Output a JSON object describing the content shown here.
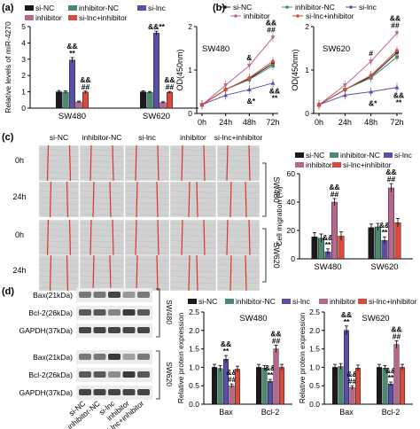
{
  "panel_labels": {
    "a": "(a)",
    "b": "(b)",
    "c": "(c)",
    "d": "(d)"
  },
  "groups": [
    "si-NC",
    "inhibitor-NC",
    "si-lnc",
    "inhibitor",
    "si-lnc+inhibitor"
  ],
  "colors": {
    "si_nc": "#1a1a1a",
    "inhibitor_nc": "#4a8a6e",
    "si_lnc": "#5a4fa8",
    "inhibitor": "#b8678c",
    "si_lnc_inhibitor": "#d84a3c",
    "wound_line": "#e0332b"
  },
  "chart_data": [
    {
      "panel": "a",
      "type": "bar",
      "ylabel": "Relative levels of miR-4270",
      "ylim": [
        0,
        5
      ],
      "yticks": [
        0,
        1,
        2,
        3,
        4,
        5
      ],
      "categories": [
        "SW480",
        "SW620"
      ],
      "series": [
        {
          "name": "si-NC",
          "values": [
            1.0,
            1.0
          ],
          "err": [
            0.08,
            0.06
          ]
        },
        {
          "name": "inhibitor-NC",
          "values": [
            0.98,
            0.97
          ],
          "err": [
            0.07,
            0.05
          ]
        },
        {
          "name": "si-lnc",
          "values": [
            2.95,
            4.6
          ],
          "err": [
            0.15,
            0.12
          ],
          "annotation": [
            "&&\n**",
            "&&**"
          ]
        },
        {
          "name": "inhibitor",
          "values": [
            0.38,
            0.34
          ],
          "err": [
            0.05,
            0.05
          ],
          "annotation": [
            "",
            ""
          ]
        },
        {
          "name": "si-lnc+inhibitor",
          "values": [
            0.98,
            0.97
          ],
          "err": [
            0.06,
            0.05
          ],
          "annotation": [
            "&&\n##",
            "&&\n##"
          ]
        }
      ]
    },
    {
      "panel": "b-left",
      "type": "line",
      "title": "SW480",
      "ylabel": "OD(450nm)",
      "ylim": [
        0,
        2
      ],
      "yticks": [
        0,
        1,
        2
      ],
      "x": [
        "0h",
        "24h",
        "48h",
        "72h"
      ],
      "series": [
        {
          "name": "si-NC",
          "values": [
            0.2,
            0.55,
            0.8,
            1.15
          ]
        },
        {
          "name": "inhibitor-NC",
          "values": [
            0.2,
            0.55,
            0.78,
            1.1
          ]
        },
        {
          "name": "si-lnc",
          "values": [
            0.2,
            0.42,
            0.55,
            0.7
          ]
        },
        {
          "name": "inhibitor",
          "values": [
            0.2,
            0.65,
            1.1,
            1.75
          ]
        },
        {
          "name": "si-lnc+inhibitor",
          "values": [
            0.2,
            0.55,
            0.82,
            1.2
          ]
        }
      ],
      "annotations": [
        "&",
        "&&\n##",
        "&*",
        "&&\n**"
      ]
    },
    {
      "panel": "b-right",
      "type": "line",
      "title": "SW620",
      "ylabel": "OD(450nm)",
      "ylim": [
        0,
        2
      ],
      "yticks": [
        0,
        1,
        2
      ],
      "x": [
        "0h",
        "24h",
        "48h",
        "72h"
      ],
      "series": [
        {
          "name": "si-NC",
          "values": [
            0.2,
            0.55,
            0.85,
            1.4
          ]
        },
        {
          "name": "inhibitor-NC",
          "values": [
            0.2,
            0.55,
            0.82,
            1.3
          ]
        },
        {
          "name": "si-lnc",
          "values": [
            0.2,
            0.42,
            0.5,
            0.6
          ]
        },
        {
          "name": "inhibitor",
          "values": [
            0.2,
            0.65,
            1.2,
            1.85
          ]
        },
        {
          "name": "si-lnc+inhibitor",
          "values": [
            0.2,
            0.55,
            0.88,
            1.45
          ]
        }
      ],
      "annotations": [
        "#",
        "&&\n##",
        "&*",
        "&&\n**"
      ]
    },
    {
      "panel": "c",
      "type": "bar",
      "ylabel": "Cell migration (%)",
      "ylim": [
        0,
        60
      ],
      "yticks": [
        0,
        20,
        40,
        60
      ],
      "categories": [
        "SW480",
        "SW620"
      ],
      "series": [
        {
          "name": "si-NC",
          "values": [
            15.5,
            22
          ],
          "err": [
            3,
            2.5
          ]
        },
        {
          "name": "inhibitor-NC",
          "values": [
            14.5,
            22.5
          ],
          "err": [
            3,
            2.5
          ]
        },
        {
          "name": "si-lnc",
          "values": [
            5,
            13
          ],
          "err": [
            2,
            2.5
          ],
          "annotation": [
            "&&\n**",
            "&&\n**"
          ]
        },
        {
          "name": "inhibitor",
          "values": [
            40,
            50
          ],
          "err": [
            2.5,
            3
          ],
          "annotation": [
            "&&\n##",
            "&&\n##"
          ]
        },
        {
          "name": "si-lnc+inhibitor",
          "values": [
            16,
            25.5
          ],
          "err": [
            3,
            3
          ]
        }
      ]
    },
    {
      "panel": "d-left",
      "type": "bar",
      "title": "SW480",
      "ylabel": "Relative protein expression",
      "ylim": [
        0,
        2.5
      ],
      "yticks": [
        0,
        0.5,
        1,
        1.5,
        2,
        2.5
      ],
      "ytick_labels": [
        "0.0",
        "0.5",
        "1.0",
        "1.5",
        "2.0",
        "2.5"
      ],
      "categories": [
        "Bax",
        "Bcl-2"
      ],
      "series": [
        {
          "name": "si-NC",
          "values": [
            1.0,
            1.0
          ],
          "err": [
            0.08,
            0.08
          ]
        },
        {
          "name": "inhibitor-NC",
          "values": [
            0.97,
            0.98
          ],
          "err": [
            0.08,
            0.07
          ]
        },
        {
          "name": "si-lnc",
          "values": [
            1.22,
            0.62
          ],
          "err": [
            0.1,
            0.05
          ],
          "annotation": [
            "&&\n**",
            "&&\n**"
          ]
        },
        {
          "name": "inhibitor",
          "values": [
            0.5,
            1.5
          ],
          "err": [
            0.05,
            0.1
          ],
          "annotation": [
            "&&\n##",
            "&&\n##"
          ]
        },
        {
          "name": "si-lnc+inhibitor",
          "values": [
            0.95,
            1.0
          ],
          "err": [
            0.08,
            0.08
          ]
        }
      ]
    },
    {
      "panel": "d-right",
      "type": "bar",
      "title": "SW620",
      "ylabel": "Relative protein expression",
      "ylim": [
        0,
        2.5
      ],
      "yticks": [
        0,
        0.5,
        1,
        1.5,
        2,
        2.5
      ],
      "ytick_labels": [
        "0.0",
        "0.5",
        "1.0",
        "1.5",
        "2.0",
        "2.5"
      ],
      "categories": [
        "Bax",
        "Bcl-2"
      ],
      "series": [
        {
          "name": "si-NC",
          "values": [
            1.0,
            1.0
          ],
          "err": [
            0.08,
            0.08
          ]
        },
        {
          "name": "inhibitor-NC",
          "values": [
            1.02,
            0.98
          ],
          "err": [
            0.08,
            0.07
          ]
        },
        {
          "name": "si-lnc",
          "values": [
            2.0,
            0.55
          ],
          "err": [
            0.12,
            0.05
          ],
          "annotation": [
            "&&\n**",
            "&&\n**"
          ]
        },
        {
          "name": "inhibitor",
          "values": [
            0.45,
            1.62
          ],
          "err": [
            0.05,
            0.1
          ],
          "annotation": [
            "&&\n##",
            "&&\n##"
          ]
        },
        {
          "name": "si-lnc+inhibitor",
          "values": [
            0.98,
            1.0
          ],
          "err": [
            0.08,
            0.08
          ]
        }
      ]
    }
  ],
  "wound_assay": {
    "columns": [
      "si-NC",
      "inhibitor-NC",
      "si-lnc",
      "inhibitor",
      "si-lnc+inhibitor"
    ],
    "rows": [
      "0h",
      "24h",
      "0h",
      "24h"
    ],
    "cell_lines": [
      "SW480",
      "SW620"
    ]
  },
  "western_blot": {
    "bands": [
      "Bax(21kDa)",
      "Bcl-2(26kDa)",
      "GAPDH(37kDa)"
    ],
    "cell_lines": [
      "SW480",
      "SW620"
    ],
    "lanes": [
      "si-NC",
      "inhibitor-NC",
      "si-lnc",
      "inhibitor",
      "si-lnc+inhibitor"
    ]
  }
}
